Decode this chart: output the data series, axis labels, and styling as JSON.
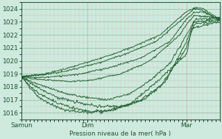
{
  "title": "Pression niveau de la mer( hPa )",
  "xlabel_ticks": [
    "Samun",
    "Dim",
    "Mar"
  ],
  "xlabel_tick_positions": [
    0.0,
    0.333,
    0.833
  ],
  "ylim": [
    1015.5,
    1024.5
  ],
  "yticks": [
    1016,
    1017,
    1018,
    1019,
    1020,
    1021,
    1022,
    1023,
    1024
  ],
  "xlim": [
    0.0,
    1.0
  ],
  "bg_color": "#ceeade",
  "grid_color_major_h": "#88bb99",
  "grid_color_minor_h": "#aaccb0",
  "grid_color_major_v": "#c8a8a8",
  "grid_color_minor_v": "#ddc0c0",
  "line_color": "#1a5c2a",
  "n_points": 300,
  "figsize": [
    3.2,
    2.0
  ],
  "dpi": 100,
  "paths": [
    {
      "x": [
        0.0,
        0.12,
        0.25,
        0.4,
        0.55,
        0.7,
        0.833,
        0.88,
        0.92,
        1.0
      ],
      "y": [
        1018.8,
        1019.0,
        1019.5,
        1020.2,
        1021.0,
        1022.0,
        1023.8,
        1024.1,
        1024.0,
        1023.2
      ],
      "noise": 0.03
    },
    {
      "x": [
        0.0,
        0.1,
        0.22,
        0.38,
        0.52,
        0.68,
        0.833,
        0.87,
        0.91,
        1.0
      ],
      "y": [
        1018.8,
        1018.9,
        1019.2,
        1019.8,
        1020.5,
        1021.5,
        1023.5,
        1024.0,
        1023.9,
        1023.1
      ],
      "noise": 0.03
    },
    {
      "x": [
        0.0,
        0.08,
        0.18,
        0.3,
        0.45,
        0.6,
        0.75,
        0.833,
        0.87,
        0.91,
        1.0
      ],
      "y": [
        1018.8,
        1018.7,
        1018.8,
        1019.0,
        1019.5,
        1020.2,
        1021.5,
        1023.2,
        1023.7,
        1023.8,
        1023.2
      ],
      "noise": 0.03
    },
    {
      "x": [
        0.0,
        0.06,
        0.15,
        0.25,
        0.35,
        0.5,
        0.65,
        0.8,
        0.833,
        0.87,
        1.0
      ],
      "y": [
        1018.8,
        1018.6,
        1018.5,
        1018.4,
        1018.5,
        1019.0,
        1020.0,
        1022.0,
        1022.8,
        1023.5,
        1023.3
      ],
      "noise": 0.03
    },
    {
      "x": [
        0.0,
        0.05,
        0.12,
        0.22,
        0.32,
        0.44,
        0.55,
        0.65,
        0.75,
        0.833,
        0.88,
        1.0
      ],
      "y": [
        1018.8,
        1018.4,
        1018.0,
        1017.5,
        1017.2,
        1017.0,
        1017.5,
        1018.5,
        1019.8,
        1022.0,
        1023.2,
        1023.3
      ],
      "noise": 0.04
    },
    {
      "x": [
        0.0,
        0.05,
        0.1,
        0.18,
        0.28,
        0.38,
        0.5,
        0.62,
        0.73,
        0.833,
        0.87,
        1.0
      ],
      "y": [
        1018.8,
        1018.3,
        1017.8,
        1017.2,
        1016.8,
        1016.5,
        1016.5,
        1017.0,
        1018.5,
        1021.5,
        1023.0,
        1023.2
      ],
      "noise": 0.05
    },
    {
      "x": [
        0.0,
        0.04,
        0.09,
        0.16,
        0.25,
        0.35,
        0.46,
        0.58,
        0.7,
        0.833,
        0.87,
        1.0
      ],
      "y": [
        1018.8,
        1018.1,
        1017.5,
        1016.9,
        1016.4,
        1016.1,
        1016.2,
        1016.8,
        1018.0,
        1021.0,
        1022.8,
        1023.1
      ],
      "noise": 0.05
    },
    {
      "x": [
        0.0,
        0.04,
        0.08,
        0.14,
        0.22,
        0.32,
        0.43,
        0.55,
        0.67,
        0.833,
        0.86,
        1.0
      ],
      "y": [
        1018.8,
        1018.0,
        1017.3,
        1016.7,
        1016.2,
        1016.05,
        1016.1,
        1016.7,
        1018.2,
        1020.5,
        1022.5,
        1023.0
      ],
      "noise": 0.05
    }
  ],
  "marker_step": 20
}
